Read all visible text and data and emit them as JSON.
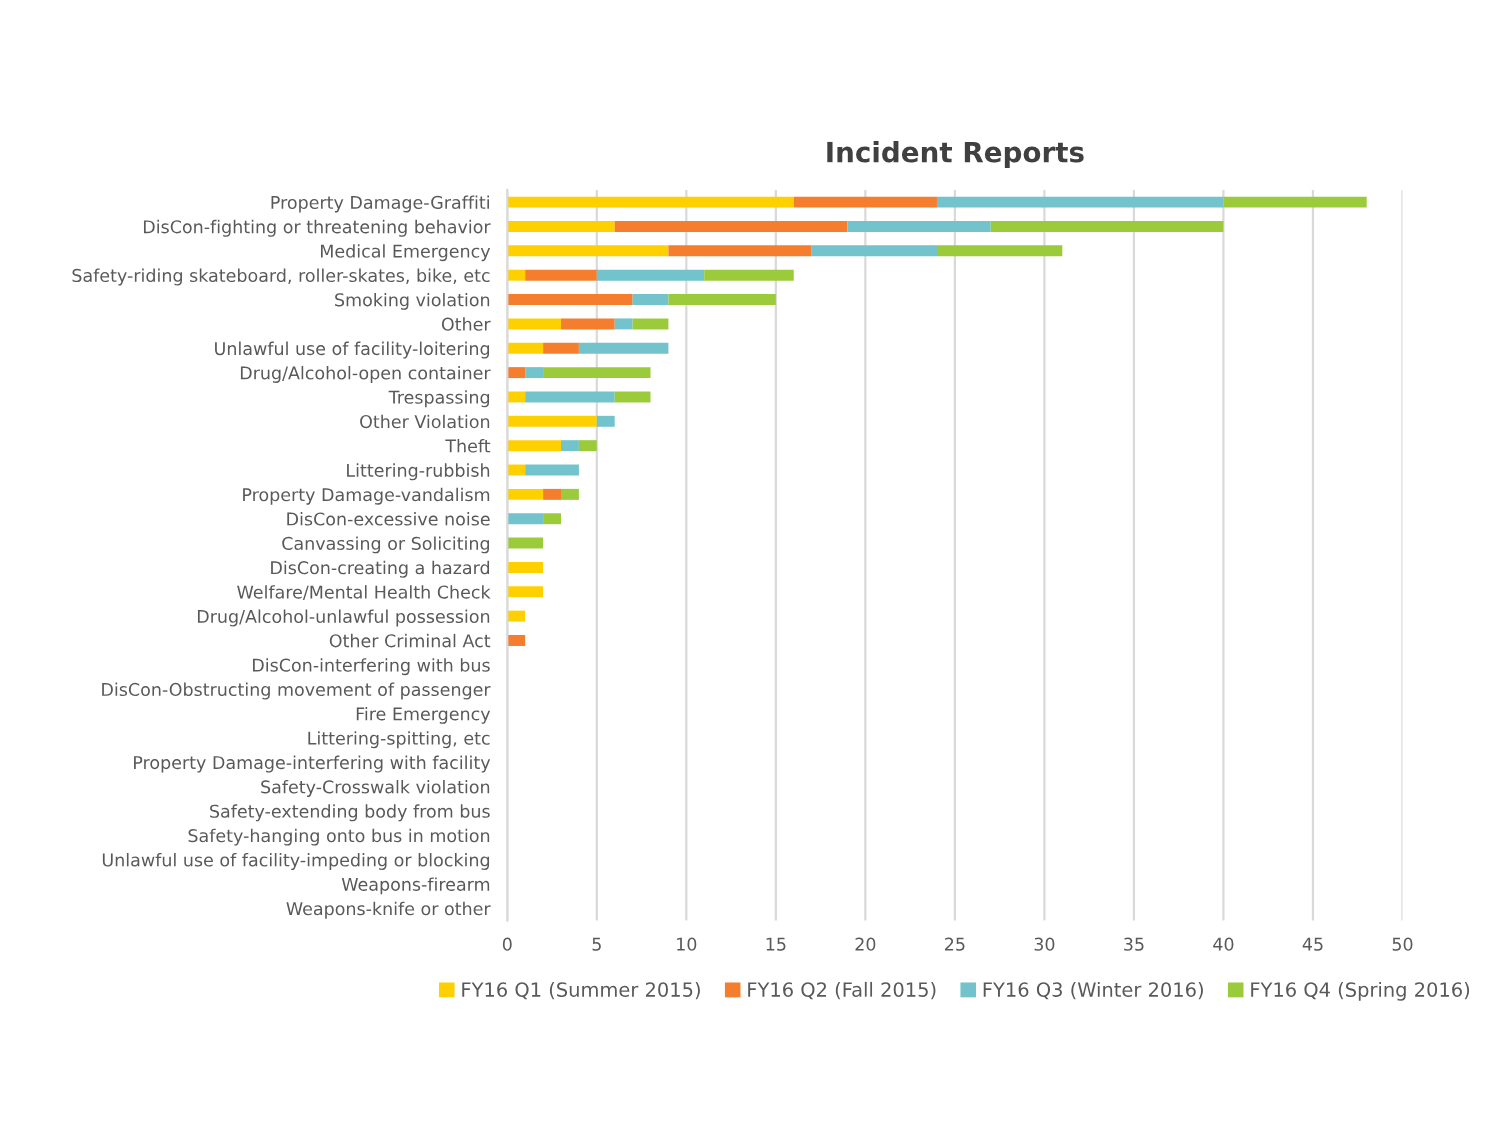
{
  "chart_data": {
    "type": "bar",
    "title": "Incident Reports",
    "orientation": "horizontal",
    "stacked": true,
    "categories": [
      "Property Damage-Graffiti",
      "DisCon-fighting or threatening behavior",
      "Medical Emergency",
      "Safety-riding skateboard, roller-skates, bike, etc",
      "Smoking violation",
      "Other",
      "Unlawful use of facility-loitering",
      "Drug/Alcohol-open container",
      "Trespassing",
      "Other Violation",
      "Theft",
      "Littering-rubbish",
      "Property Damage-vandalism",
      "DisCon-excessive noise",
      "Canvassing or Soliciting",
      "DisCon-creating a hazard",
      "Welfare/Mental Health Check",
      "Drug/Alcohol-unlawful possession",
      "Other Criminal Act",
      "DisCon-interfering with bus",
      "DisCon-Obstructing movement of passenger",
      "Fire Emergency",
      "Littering-spitting, etc",
      "Property Damage-interfering with facility",
      "Safety-Crosswalk violation",
      "Safety-extending body from bus",
      "Safety-hanging onto bus in motion",
      "Unlawful use of facility-impeding or blocking",
      "Weapons-firearm",
      "Weapons-knife or other"
    ],
    "series": [
      {
        "name": "FY16 Q1 (Summer 2015)",
        "color": "#ffd000",
        "values": [
          16,
          6,
          9,
          1,
          0,
          3,
          2,
          0,
          1,
          5,
          3,
          1,
          2,
          0,
          0,
          2,
          2,
          1,
          0,
          0,
          0,
          0,
          0,
          0,
          0,
          0,
          0,
          0,
          0,
          0
        ]
      },
      {
        "name": "FY16 Q2 (Fall 2015)",
        "color": "#f47e2e",
        "values": [
          8,
          13,
          8,
          4,
          7,
          3,
          2,
          1,
          0,
          0,
          0,
          0,
          1,
          0,
          0,
          0,
          0,
          0,
          1,
          0,
          0,
          0,
          0,
          0,
          0,
          0,
          0,
          0,
          0,
          0
        ]
      },
      {
        "name": "FY16 Q3 (Winter 2016)",
        "color": "#72c3cb",
        "values": [
          16,
          8,
          7,
          6,
          2,
          1,
          5,
          1,
          5,
          1,
          1,
          3,
          0,
          2,
          0,
          0,
          0,
          0,
          0,
          0,
          0,
          0,
          0,
          0,
          0,
          0,
          0,
          0,
          0,
          0
        ]
      },
      {
        "name": "FY16 Q4 (Spring 2016)",
        "color": "#9bcb3b",
        "values": [
          8,
          13,
          7,
          5,
          6,
          2,
          0,
          6,
          2,
          0,
          1,
          0,
          1,
          1,
          2,
          0,
          0,
          0,
          0,
          0,
          0,
          0,
          0,
          0,
          0,
          0,
          0,
          0,
          0,
          0
        ]
      }
    ],
    "xlim": [
      0,
      50
    ],
    "xticks": [
      0,
      5,
      10,
      15,
      20,
      25,
      30,
      35,
      40,
      45,
      50
    ],
    "grid": "x",
    "legend": "bottom"
  }
}
